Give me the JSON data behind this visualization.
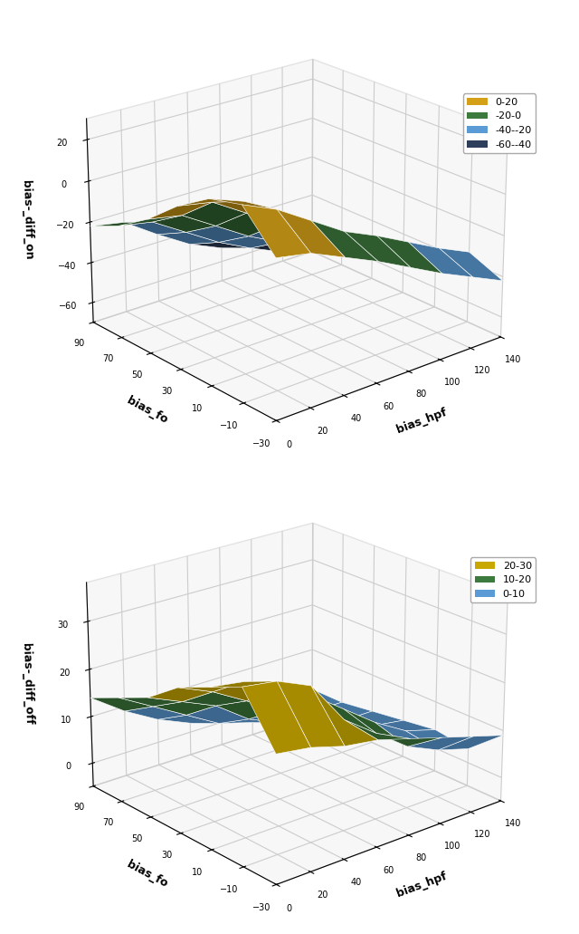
{
  "bias_hpf_range": [
    0,
    20,
    40,
    60,
    80,
    100,
    120,
    140
  ],
  "bias_fo_range": [
    -30,
    -10,
    10,
    30,
    50,
    70,
    90
  ],
  "plot1_ylabel": "bias-_diff_on",
  "plot1_xlabel": "bias_fo",
  "plot1_xaxislabel": "bias_hpf",
  "plot1_zlim": [
    -70,
    30
  ],
  "plot1_zticks": [
    -60,
    -40,
    -20,
    0,
    20
  ],
  "plot1_colors": [
    "#d4a017",
    "#3d7a3d",
    "#5b9bd5",
    "#2e3f5c"
  ],
  "plot1_legend": [
    "0-20",
    "-20-0",
    "-40--20",
    "-60--40"
  ],
  "plot2_ylabel": "bias-_diff_off",
  "plot2_xlabel": "bias_fo",
  "plot2_xaxislabel": "bias_hpf",
  "plot2_zlim": [
    -5,
    38
  ],
  "plot2_zticks": [
    0,
    10,
    20,
    30
  ],
  "plot2_colors": [
    "#5b9bd5",
    "#3d7a3d",
    "#c8a800"
  ],
  "plot2_legend": [
    "20-30",
    "10-20",
    "0-10"
  ],
  "pane_color": "#f0f0f0",
  "fig_bg": "white",
  "Z_on_data": [
    [
      5,
      22,
      18,
      8,
      -5,
      -15,
      -22
    ],
    [
      2,
      15,
      12,
      5,
      -8,
      -18,
      -25
    ],
    [
      -5,
      5,
      3,
      -5,
      -18,
      -28,
      -36
    ],
    [
      -12,
      -5,
      -8,
      -15,
      -28,
      -38,
      -46
    ],
    [
      -20,
      -12,
      -18,
      -25,
      -36,
      -46,
      -53
    ],
    [
      -28,
      -20,
      -26,
      -33,
      -43,
      -53,
      -58
    ],
    [
      -35,
      -28,
      -33,
      -40,
      -50,
      -58,
      -63
    ],
    [
      -42,
      -35,
      -40,
      -47,
      -55,
      -62,
      -66
    ]
  ],
  "Z_off_data": [
    [
      21,
      31,
      28,
      25,
      20,
      17,
      14
    ],
    [
      20,
      30,
      27,
      22,
      17,
      13,
      9
    ],
    [
      18,
      27,
      24,
      18,
      14,
      9,
      5
    ],
    [
      17,
      18,
      20,
      14,
      9,
      5,
      2
    ],
    [
      15,
      13,
      15,
      10,
      6,
      3,
      1
    ],
    [
      13,
      8,
      10,
      7,
      4,
      2,
      0
    ],
    [
      11,
      5,
      6,
      4,
      2,
      1,
      0
    ],
    [
      9,
      3,
      4,
      3,
      2,
      1,
      1
    ]
  ],
  "elev": 22,
  "azim1": 230,
  "azim2": 230
}
